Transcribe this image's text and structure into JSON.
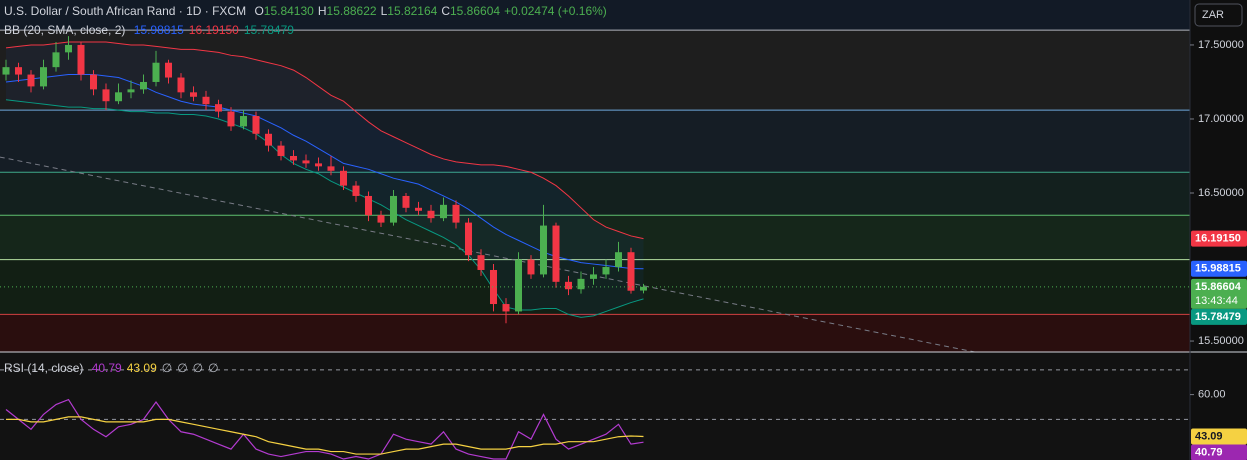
{
  "chart_data": [
    {
      "type": "candlestick",
      "title": "U.S. Dollar / South African Rand · 1D · FXCM",
      "ohlc_legend": [
        {
          "key": "O",
          "value": "15.84130"
        },
        {
          "key": "H",
          "value": "15.88622"
        },
        {
          "key": "L",
          "value": "15.82164"
        },
        {
          "key": "C",
          "value": "15.86604"
        }
      ],
      "change": "+0.02474 (+0.16%)",
      "currency": "ZAR",
      "indicator": "BB (20, SMA, close, 2)",
      "indicator_values": [
        "15.98815",
        "16.19150",
        "15.78479"
      ],
      "up_color": "#4caf50",
      "down_color": "#f23645",
      "ohlc": [
        [
          17.3,
          17.4,
          17.26,
          17.35
        ],
        [
          17.35,
          17.38,
          17.25,
          17.3
        ],
        [
          17.3,
          17.33,
          17.18,
          17.22
        ],
        [
          17.22,
          17.4,
          17.2,
          17.35
        ],
        [
          17.35,
          17.52,
          17.32,
          17.45
        ],
        [
          17.45,
          17.56,
          17.4,
          17.5
        ],
        [
          17.5,
          17.52,
          17.26,
          17.3
        ],
        [
          17.3,
          17.33,
          17.16,
          17.2
        ],
        [
          17.2,
          17.24,
          17.06,
          17.12
        ],
        [
          17.12,
          17.24,
          17.1,
          17.18
        ],
        [
          17.18,
          17.26,
          17.14,
          17.2
        ],
        [
          17.2,
          17.3,
          17.17,
          17.25
        ],
        [
          17.25,
          17.46,
          17.22,
          17.38
        ],
        [
          17.38,
          17.4,
          17.24,
          17.28
        ],
        [
          17.28,
          17.31,
          17.14,
          17.18
        ],
        [
          17.18,
          17.22,
          17.12,
          17.15
        ],
        [
          17.15,
          17.19,
          17.06,
          17.1
        ],
        [
          17.1,
          17.13,
          17.01,
          17.05
        ],
        [
          17.05,
          17.08,
          16.92,
          16.95
        ],
        [
          16.95,
          17.06,
          16.93,
          17.02
        ],
        [
          17.02,
          17.05,
          16.86,
          16.9
        ],
        [
          16.9,
          16.93,
          16.78,
          16.82
        ],
        [
          16.82,
          16.85,
          16.72,
          16.75
        ],
        [
          16.75,
          16.79,
          16.69,
          16.72
        ],
        [
          16.72,
          16.76,
          16.67,
          16.7
        ],
        [
          16.7,
          16.74,
          16.65,
          16.68
        ],
        [
          16.68,
          16.75,
          16.62,
          16.65
        ],
        [
          16.65,
          16.68,
          16.52,
          16.55
        ],
        [
          16.55,
          16.58,
          16.44,
          16.48
        ],
        [
          16.48,
          16.51,
          16.31,
          16.35
        ],
        [
          16.35,
          16.38,
          16.27,
          16.3
        ],
        [
          16.3,
          16.52,
          16.28,
          16.48
        ],
        [
          16.48,
          16.5,
          16.37,
          16.4
        ],
        [
          16.4,
          16.44,
          16.35,
          16.38
        ],
        [
          16.38,
          16.42,
          16.3,
          16.33
        ],
        [
          16.33,
          16.47,
          16.31,
          16.42
        ],
        [
          16.42,
          16.45,
          16.26,
          16.3
        ],
        [
          16.3,
          16.33,
          16.04,
          16.08
        ],
        [
          16.08,
          16.12,
          15.94,
          15.98
        ],
        [
          15.98,
          16.02,
          15.7,
          15.75
        ],
        [
          15.75,
          15.79,
          15.62,
          15.7
        ],
        [
          15.7,
          16.1,
          15.68,
          16.05
        ],
        [
          16.05,
          16.08,
          15.92,
          15.95
        ],
        [
          15.95,
          16.42,
          15.93,
          16.28
        ],
        [
          16.28,
          16.3,
          15.86,
          15.9
        ],
        [
          15.9,
          15.94,
          15.81,
          15.85
        ],
        [
          15.85,
          15.97,
          15.82,
          15.92
        ],
        [
          15.92,
          16.0,
          15.88,
          15.95
        ],
        [
          15.95,
          16.05,
          15.92,
          16.0
        ],
        [
          16.0,
          16.17,
          15.97,
          16.1
        ],
        [
          16.1,
          16.13,
          15.82,
          15.84
        ],
        [
          15.8413,
          15.88622,
          15.82164,
          15.86604
        ]
      ],
      "series": [
        {
          "color": "#2962ff",
          "values": [
            17.25,
            17.26,
            17.27,
            17.28,
            17.29,
            17.3,
            17.3,
            17.3,
            17.29,
            17.28,
            17.25,
            17.22,
            17.18,
            17.15,
            17.12,
            17.1,
            17.09,
            17.08,
            17.06,
            17.04,
            17.02,
            16.98,
            16.94,
            16.89,
            16.85,
            16.8,
            16.75,
            16.7,
            16.68,
            16.66,
            16.63,
            16.6,
            16.58,
            16.56,
            16.52,
            16.48,
            16.44,
            16.39,
            16.33,
            16.27,
            16.22,
            16.18,
            16.14,
            16.1,
            16.07,
            16.05,
            16.03,
            16.02,
            16.01,
            16.0,
            15.99,
            15.98815
          ]
        },
        {
          "color": "#f23645",
          "values": [
            17.48,
            17.49,
            17.5,
            17.5,
            17.51,
            17.52,
            17.52,
            17.52,
            17.52,
            17.51,
            17.5,
            17.5,
            17.49,
            17.48,
            17.47,
            17.47,
            17.46,
            17.45,
            17.43,
            17.42,
            17.4,
            17.38,
            17.36,
            17.33,
            17.28,
            17.22,
            17.16,
            17.12,
            17.05,
            16.98,
            16.92,
            16.88,
            16.84,
            16.8,
            16.76,
            16.73,
            16.71,
            16.7,
            16.69,
            16.69,
            16.68,
            16.66,
            16.64,
            16.6,
            16.55,
            16.48,
            16.4,
            16.32,
            16.27,
            16.24,
            16.21,
            16.1915
          ]
        },
        {
          "color": "#089981",
          "values": [
            17.13,
            17.12,
            17.11,
            17.1,
            17.09,
            17.08,
            17.08,
            17.07,
            17.07,
            17.06,
            17.05,
            17.05,
            17.04,
            17.04,
            17.03,
            17.03,
            17.02,
            17.0,
            16.97,
            16.94,
            16.9,
            16.84,
            16.76,
            16.7,
            16.66,
            16.63,
            16.58,
            16.54,
            16.5,
            16.46,
            16.42,
            16.37,
            16.32,
            16.28,
            16.24,
            16.2,
            16.15,
            16.08,
            15.98,
            15.85,
            15.73,
            15.71,
            15.71,
            15.72,
            15.72,
            15.68,
            15.66,
            15.67,
            15.7,
            15.73,
            15.76,
            15.78479
          ]
        }
      ],
      "trendline": {
        "x": [
          -0.5,
          77.5
        ],
        "y": [
          16.743,
          15.426
        ],
        "color": "#787b86"
      },
      "levels": [
        {
          "value": 17.6,
          "color": "#b2b5be",
          "fill": "#1e1e1e"
        },
        {
          "value": 17.06,
          "color": "#6fa8dc",
          "fill": "#151d25"
        },
        {
          "value": 16.64,
          "color": "#3fa98a",
          "fill": "#13201e"
        },
        {
          "value": 16.35,
          "color": "#5fbf6f",
          "fill": "#15261a"
        },
        {
          "value": 16.05,
          "color": "#b5e0a0",
          "fill": "#121f14"
        },
        {
          "value": 15.68,
          "color": "#d04040",
          "fill": "#2a0e0e"
        }
      ],
      "ylim": [
        15.426,
        17.601
      ],
      "yticks": [
        {
          "value": 17.5,
          "label": "17.50000"
        },
        {
          "value": 17.0,
          "label": "17.00000"
        },
        {
          "value": 16.5,
          "label": "16.50000"
        },
        {
          "value": 15.5,
          "label": "15.50000"
        }
      ],
      "price_tags": [
        {
          "value": 16.1915,
          "label": "16.19150",
          "color": "#f23645"
        },
        {
          "value": 15.98815,
          "label": "15.98815",
          "color": "#2962ff"
        },
        {
          "value": 15.86604,
          "label": "15.86604",
          "sublabel": "13:43:44",
          "color": "#4caf50",
          "dotted": true
        },
        {
          "value": 15.78479,
          "label": "15.78479",
          "color": "#089981"
        }
      ]
    },
    {
      "type": "line",
      "title": "RSI (14, close)",
      "legend_values": [
        "40.79",
        "43.09",
        "∅",
        "∅",
        "∅",
        "∅"
      ],
      "series": [
        {
          "color": "#b33bd0",
          "values": [
            54,
            50,
            46,
            52,
            56,
            58,
            50,
            46,
            43,
            47,
            48,
            50,
            57,
            50,
            45,
            44,
            42,
            40,
            38,
            44,
            38,
            36,
            35,
            36,
            37,
            37,
            36,
            34,
            35,
            34,
            36,
            44,
            42,
            41,
            40,
            45,
            38,
            36,
            35,
            34,
            34,
            45,
            42,
            52,
            42,
            38,
            40,
            42,
            44,
            48,
            40,
            40.79
          ]
        },
        {
          "color": "#f5d142",
          "values": [
            50,
            50,
            49,
            49,
            50,
            51,
            51,
            50,
            49,
            49,
            49,
            49,
            50,
            50,
            49,
            48,
            47,
            46,
            45,
            44,
            43,
            41,
            40,
            39,
            38,
            38,
            37,
            37,
            36,
            36,
            36,
            37,
            38,
            38,
            39,
            40,
            40,
            39,
            38,
            38,
            38,
            39,
            39,
            40,
            40,
            41,
            41,
            41,
            42,
            43,
            43.3,
            43.09
          ]
        }
      ],
      "levels": [
        70,
        50
      ],
      "ylim": [
        33.6,
        77.2
      ],
      "yticks": [
        {
          "value": 60,
          "label": "60.00"
        }
      ],
      "value_tags": [
        {
          "value": 43.09,
          "label": "43.09",
          "color": "#f5d142"
        },
        {
          "value": 40.79,
          "label": "40.79",
          "color": "#9c27b0"
        }
      ]
    }
  ]
}
